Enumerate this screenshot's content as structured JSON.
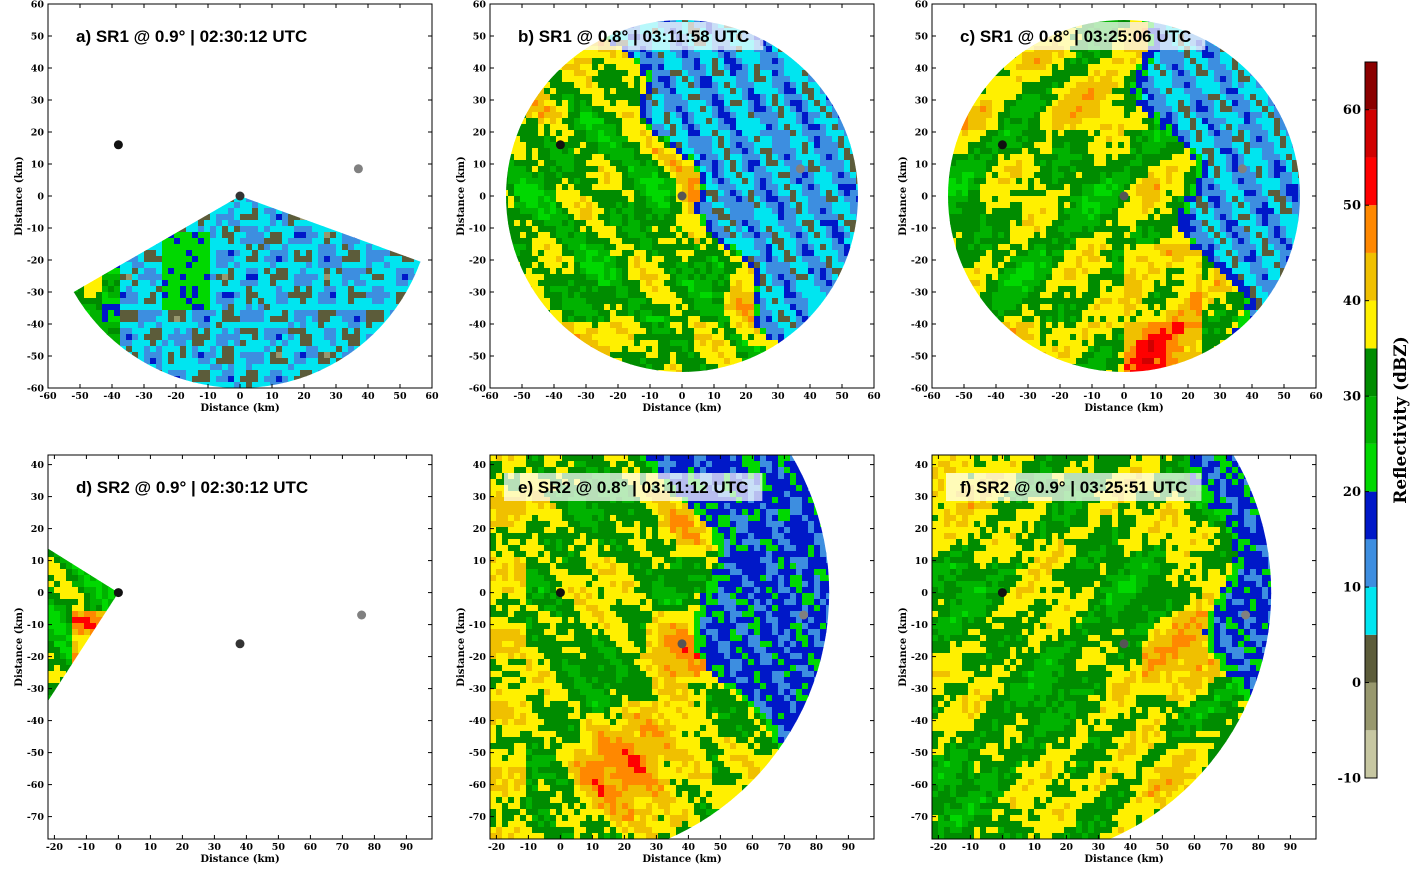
{
  "chart_data": {
    "type": "heatmap",
    "colorbar": {
      "label": "Reflectivity (dBZ)",
      "range": [
        -10,
        65
      ],
      "ticks": [
        "60",
        "50",
        "40",
        "30",
        "20",
        "10",
        "0",
        "-10"
      ],
      "tick_values": [
        60,
        50,
        40,
        30,
        20,
        10,
        0,
        -10
      ],
      "bins": [
        {
          "lo": -10,
          "hi": -5,
          "color": "#c7c7a2"
        },
        {
          "lo": -5,
          "hi": 0,
          "color": "#98986e"
        },
        {
          "lo": 0,
          "hi": 5,
          "color": "#5c5c3a"
        },
        {
          "lo": 5,
          "hi": 10,
          "color": "#00e5f0"
        },
        {
          "lo": 10,
          "hi": 15,
          "color": "#3d8ee0"
        },
        {
          "lo": 15,
          "hi": 20,
          "color": "#0018c8"
        },
        {
          "lo": 20,
          "hi": 25,
          "color": "#00d800"
        },
        {
          "lo": 25,
          "hi": 30,
          "color": "#00b200"
        },
        {
          "lo": 30,
          "hi": 35,
          "color": "#008c00"
        },
        {
          "lo": 35,
          "hi": 40,
          "color": "#fff000"
        },
        {
          "lo": 40,
          "hi": 45,
          "color": "#f0c000"
        },
        {
          "lo": 45,
          "hi": 50,
          "color": "#ff8800"
        },
        {
          "lo": 50,
          "hi": 55,
          "color": "#ff0000"
        },
        {
          "lo": 55,
          "hi": 60,
          "color": "#d00000"
        },
        {
          "lo": 60,
          "hi": 65,
          "color": "#8b0000"
        }
      ]
    },
    "panels": [
      {
        "id": "a",
        "title": "a) SR1 @ 0.9° | 02:30:12 UTC",
        "xlabel": "Distance (km)",
        "ylabel": "Distance (km)",
        "xlim": [
          -60,
          60
        ],
        "ylim": [
          -60,
          60
        ],
        "xticks": [
          -60,
          -50,
          -40,
          -30,
          -20,
          -10,
          0,
          10,
          20,
          30,
          40,
          50,
          60
        ],
        "yticks": [
          -60,
          -50,
          -40,
          -30,
          -20,
          -10,
          0,
          10,
          20,
          30,
          40,
          50,
          60
        ],
        "radar": [
          0,
          0
        ],
        "range_km": 60,
        "sector_deg": [
          210,
          340
        ],
        "markers": [
          {
            "x": -38,
            "y": 16,
            "color": "#111111"
          },
          {
            "x": 0,
            "y": 0,
            "color": "#333333"
          },
          {
            "x": 37,
            "y": 8.5,
            "color": "#808080"
          }
        ]
      },
      {
        "id": "b",
        "title": "b) SR1 @ 0.8° | 03:11:58 UTC",
        "xlabel": "Distance (km)",
        "ylabel": "Distance (km)",
        "xlim": [
          -60,
          60
        ],
        "ylim": [
          -60,
          60
        ],
        "xticks": [
          -60,
          -50,
          -40,
          -30,
          -20,
          -10,
          0,
          10,
          20,
          30,
          40,
          50,
          60
        ],
        "yticks": [
          -60,
          -50,
          -40,
          -30,
          -20,
          -10,
          0,
          10,
          20,
          30,
          40,
          50,
          60
        ],
        "radar": [
          0,
          0
        ],
        "range_km": 55,
        "markers": [
          {
            "x": -38,
            "y": 16,
            "color": "#111111"
          },
          {
            "x": 0,
            "y": 0,
            "color": "#555555"
          },
          {
            "x": 37,
            "y": 8.5,
            "color": "#808080"
          }
        ]
      },
      {
        "id": "c",
        "title": "c) SR1 @ 0.8° | 03:25:06 UTC",
        "xlabel": "Distance (km)",
        "ylabel": "Distance (km)",
        "xlim": [
          -60,
          60
        ],
        "ylim": [
          -60,
          60
        ],
        "xticks": [
          -60,
          -50,
          -40,
          -30,
          -20,
          -10,
          0,
          10,
          20,
          30,
          40,
          50,
          60
        ],
        "yticks": [
          -60,
          -50,
          -40,
          -30,
          -20,
          -10,
          0,
          10,
          20,
          30,
          40,
          50,
          60
        ],
        "radar": [
          0,
          0
        ],
        "range_km": 55,
        "markers": [
          {
            "x": -38,
            "y": 16,
            "color": "#111111"
          },
          {
            "x": 0,
            "y": 0,
            "color": "#555555"
          },
          {
            "x": 37,
            "y": 8.5,
            "color": "#808080"
          }
        ]
      },
      {
        "id": "d",
        "title": "d) SR2 @ 0.9° | 02:30:12 UTC",
        "xlabel": "Distance (km)",
        "ylabel": "Distance (km)",
        "xlim": [
          -22,
          98
        ],
        "ylim": [
          -77,
          43
        ],
        "xticks": [
          -20,
          -10,
          0,
          10,
          20,
          30,
          40,
          50,
          60,
          70,
          80,
          90
        ],
        "yticks": [
          -70,
          -60,
          -50,
          -40,
          -30,
          -20,
          -10,
          0,
          10,
          20,
          30,
          40
        ],
        "radar": [
          0,
          0
        ],
        "range_km": 90,
        "sector_deg": [
          148,
          237
        ],
        "markers": [
          {
            "x": 0,
            "y": 0,
            "color": "#111111"
          },
          {
            "x": 38,
            "y": -16,
            "color": "#333333"
          },
          {
            "x": 76,
            "y": -7,
            "color": "#808080"
          }
        ]
      },
      {
        "id": "e",
        "title": "e) SR2 @ 0.8° | 03:11:12 UTC",
        "xlabel": "Distance (km)",
        "ylabel": "Distance (km)",
        "xlim": [
          -22,
          98
        ],
        "ylim": [
          -77,
          43
        ],
        "xticks": [
          -20,
          -10,
          0,
          10,
          20,
          30,
          40,
          50,
          60,
          70,
          80,
          90
        ],
        "yticks": [
          -70,
          -60,
          -50,
          -40,
          -30,
          -20,
          -10,
          0,
          10,
          20,
          30,
          40
        ],
        "radar": [
          0,
          0
        ],
        "range_km": 84,
        "markers": [
          {
            "x": 0,
            "y": 0,
            "color": "#111111"
          },
          {
            "x": 38,
            "y": -16,
            "color": "#555555"
          },
          {
            "x": 76,
            "y": -7,
            "color": "#808080"
          }
        ]
      },
      {
        "id": "f",
        "title": "f) SR2 @ 0.9° | 03:25:51 UTC",
        "xlabel": "Distance (km)",
        "ylabel": "Distance (km)",
        "xlim": [
          -22,
          98
        ],
        "ylim": [
          -77,
          43
        ],
        "xticks": [
          -20,
          -10,
          0,
          10,
          20,
          30,
          40,
          50,
          60,
          70,
          80,
          90
        ],
        "yticks": [
          -70,
          -60,
          -50,
          -40,
          -30,
          -20,
          -10,
          0,
          10,
          20,
          30,
          40
        ],
        "radar": [
          0,
          0
        ],
        "range_km": 84,
        "markers": [
          {
            "x": 0,
            "y": 0,
            "color": "#111111"
          },
          {
            "x": 38,
            "y": -16,
            "color": "#555555"
          },
          {
            "x": 76,
            "y": -7,
            "color": "#808080"
          }
        ]
      }
    ]
  }
}
